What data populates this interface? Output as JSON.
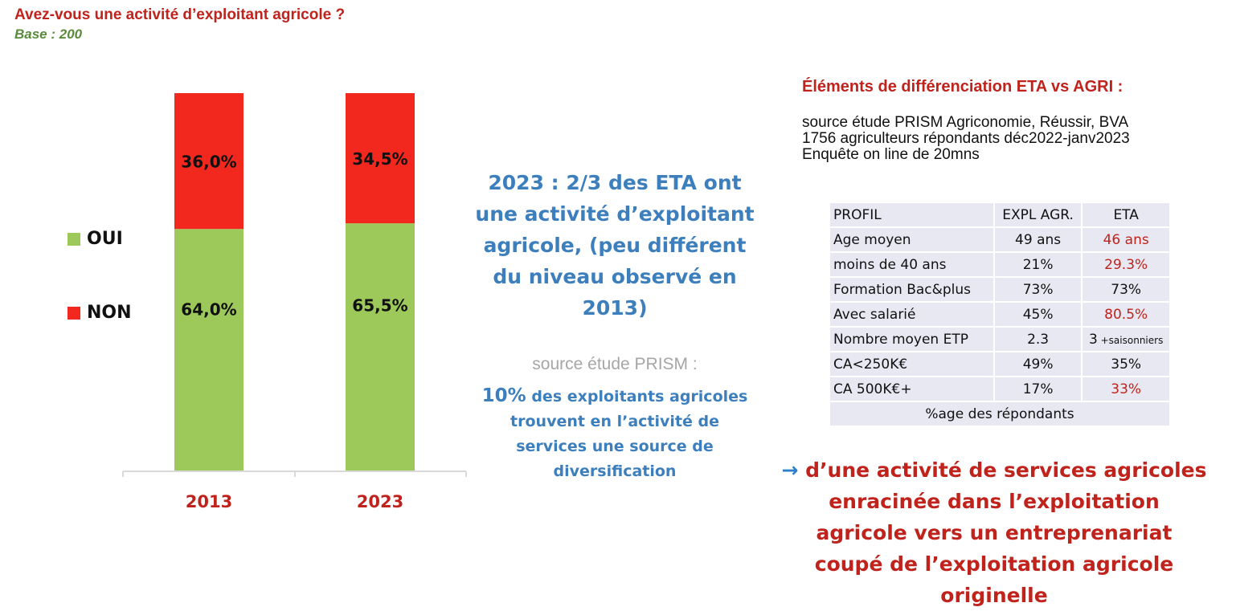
{
  "header": {
    "question": "Avez-vous une activité d’exploitant agricole ?",
    "base": "Base : 200"
  },
  "chart_data": {
    "type": "bar",
    "stacked": true,
    "categories": [
      "2013",
      "2023"
    ],
    "series": [
      {
        "name": "OUI",
        "values": [
          64.0,
          65.5
        ],
        "labels": [
          "64,0%",
          "65,5%"
        ],
        "color": "#9dc85a"
      },
      {
        "name": "NON",
        "values": [
          36.0,
          34.5
        ],
        "labels": [
          "36,0%",
          "34,5%"
        ],
        "color": "#f2281e"
      }
    ],
    "ylim": [
      0,
      100
    ],
    "legend_position": "left",
    "grid": false,
    "tick_color": "#c0221c"
  },
  "middle": {
    "main_text": "2023 : 2/3 des ETA ont une activité d’exploitant agricole, (peu différent du niveau observé en 2013)",
    "source_label": "source étude PRISM :",
    "stat_pct": "10%",
    "stat_text": " des exploitants agricoles trouvent en l’activité de services une source de diversification"
  },
  "right": {
    "title": "Éléments de différenciation ETA vs AGRI :",
    "source_lines": [
      "source étude PRISM Agriconomie, Réussir, BVA",
      "1756 agriculteurs répondants déc2022-janv2023",
      "Enquête on line de 20mns"
    ],
    "table": {
      "headers": [
        "PROFIL",
        "EXPL AGR.",
        "ETA"
      ],
      "rows": [
        {
          "profil": "Age moyen",
          "expl": "49 ans",
          "eta": "46 ans",
          "eta_red": true
        },
        {
          "profil": "moins de 40 ans",
          "expl": "21%",
          "eta": "29.3%",
          "eta_red": true
        },
        {
          "profil": "Formation Bac&plus",
          "expl": "73%",
          "eta": "73%",
          "eta_red": false
        },
        {
          "profil": "Avec salarié",
          "expl": "45%",
          "eta": "80.5%",
          "eta_red": true
        },
        {
          "profil": "Nombre moyen ETP",
          "expl": "2.3",
          "eta": "3",
          "eta_suffix": " +saisonniers",
          "eta_red": false
        },
        {
          "profil": "CA<250K€",
          "expl": "49%",
          "eta": "35%",
          "eta_red": false
        },
        {
          "profil": "CA 500K€+",
          "expl": "17%",
          "eta": "33%",
          "eta_red": true
        }
      ],
      "footnote": "%age des répondants"
    },
    "conclusion": {
      "arrow": "→",
      "text": " d’une activité de services agricoles enracinée dans l’exploitation agricole vers un entreprenariat coupé de l’exploitation agricole originelle"
    }
  },
  "colors": {
    "accent_red": "#c0221c",
    "accent_blue": "#3d7fbd",
    "table_bg": "#e7e8f1"
  }
}
